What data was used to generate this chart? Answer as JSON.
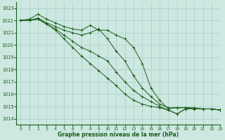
{
  "title": "Graphe pression niveau de la mer (hPa)",
  "background_color": "#cce8e0",
  "grid_color": "#aacccc",
  "line_color": "#1a5c1a",
  "xlim": [
    -0.5,
    23
  ],
  "ylim": [
    1013.5,
    1023.5
  ],
  "yticks": [
    1014,
    1015,
    1016,
    1017,
    1018,
    1019,
    1020,
    1021,
    1022,
    1023
  ],
  "xticks": [
    0,
    1,
    2,
    3,
    4,
    5,
    6,
    7,
    8,
    9,
    10,
    11,
    12,
    13,
    14,
    15,
    16,
    17,
    18,
    19,
    20,
    21,
    22,
    23
  ],
  "series": [
    [
      1022.0,
      1022.1,
      1022.5,
      1022.1,
      1021.8,
      1021.5,
      1021.3,
      1021.2,
      1021.6,
      1021.2,
      1021.2,
      1020.8,
      1020.5,
      1019.8,
      1018.5,
      1016.5,
      1015.5,
      1014.8,
      1014.9,
      1014.9,
      1014.9,
      1014.8,
      1014.8,
      1014.7
    ],
    [
      1022.0,
      1022.0,
      1022.2,
      1021.8,
      1021.5,
      1021.2,
      1021.0,
      1020.8,
      1021.0,
      1021.3,
      1020.5,
      1019.5,
      1018.7,
      1017.5,
      1016.5,
      1015.8,
      1015.2,
      1014.9,
      1014.9,
      1014.9,
      1014.8,
      1014.8,
      1014.8,
      1014.7
    ],
    [
      1022.0,
      1022.0,
      1022.1,
      1021.7,
      1021.3,
      1020.8,
      1020.3,
      1019.8,
      1019.5,
      1019.1,
      1018.7,
      1017.8,
      1017.0,
      1016.3,
      1015.8,
      1015.4,
      1015.0,
      1014.7,
      1014.4,
      1014.8,
      1014.8,
      1014.8,
      1014.8,
      1014.7
    ],
    [
      1022.0,
      1022.0,
      1022.1,
      1021.7,
      1021.2,
      1020.5,
      1019.8,
      1019.1,
      1018.5,
      1017.9,
      1017.3,
      1016.7,
      1016.0,
      1015.5,
      1015.2,
      1015.0,
      1014.9,
      1014.7,
      1014.4,
      1014.8,
      1014.8,
      1014.8,
      1014.8,
      1014.7
    ]
  ]
}
